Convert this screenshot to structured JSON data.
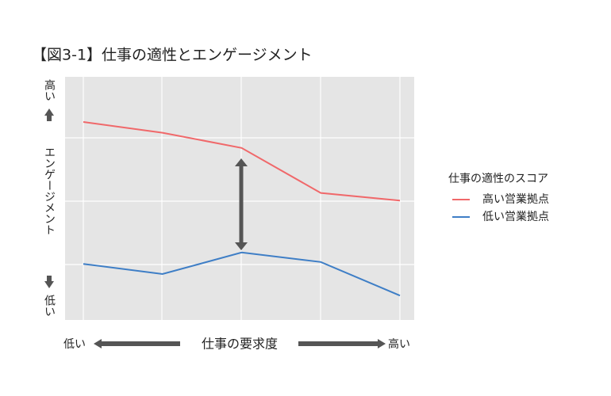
{
  "chart_data": {
    "type": "line",
    "title": "【図3-1】仕事の適性とエンゲージメント",
    "categories": [
      null,
      null,
      null,
      null,
      null
    ],
    "x_label": "仕事の要求度",
    "x_low": "低い",
    "x_high": "高い",
    "y_label": "エンゲージメント",
    "y_high": "高い",
    "y_low": "低い",
    "legend_title": "仕事の適性のスコア",
    "ylim": [
      0,
      4
    ],
    "series": [
      {
        "name": "高い営業拠点",
        "color": "#f0686a",
        "values": [
          3.25,
          3.08,
          2.84,
          2.13,
          2.01
        ]
      },
      {
        "name": "低い営業拠点",
        "color": "#3e7ec6",
        "values": [
          1.01,
          0.85,
          1.19,
          1.04,
          0.51
        ]
      }
    ]
  }
}
